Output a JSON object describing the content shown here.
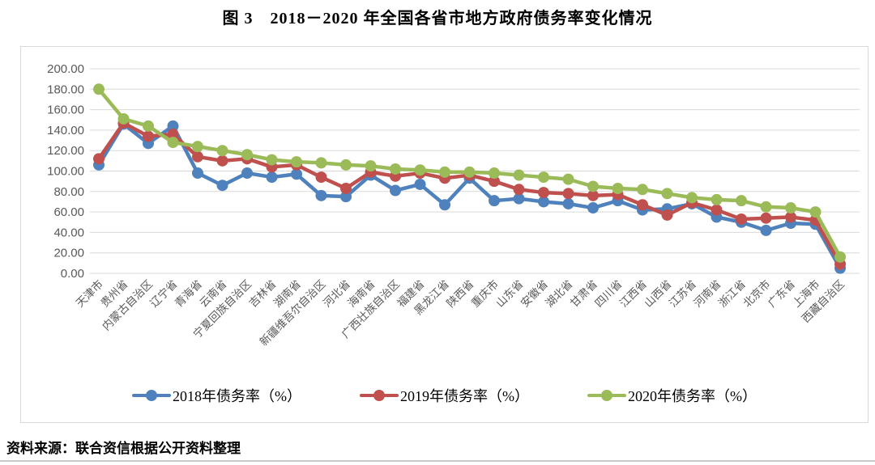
{
  "title": "图 3　2018－2020 年全国各省市地方政府债务率变化情况",
  "source_note": "资料来源：联合资信根据公开资料整理",
  "colors": {
    "gridline": "#d9d9d9",
    "axis_text": "#595959",
    "chart_border": "#d9d9d9"
  },
  "chart_data": {
    "type": "line",
    "title": "图 3　2018－2020 年全国各省市地方政府债务率变化情况",
    "xlabel": "",
    "ylabel": "",
    "ylim": [
      0,
      200
    ],
    "ytick_step": 20,
    "ytick_labels": [
      "0.00",
      "20.00",
      "40.00",
      "60.00",
      "80.00",
      "100.00",
      "120.00",
      "140.00",
      "160.00",
      "180.00",
      "200.00"
    ],
    "grid": "horizontal",
    "legend_position": "bottom",
    "categories": [
      "天津市",
      "贵州省",
      "内蒙古自治区",
      "辽宁省",
      "青海省",
      "云南省",
      "宁夏回族自治区",
      "吉林省",
      "湖南省",
      "新疆维吾尔自治区",
      "河北省",
      "海南省",
      "广西壮族自治区",
      "福建省",
      "黑龙江省",
      "陕西省",
      "重庆市",
      "山东省",
      "安徽省",
      "湖北省",
      "甘肃省",
      "四川省",
      "江西省",
      "山西省",
      "江苏省",
      "河南省",
      "浙江省",
      "北京市",
      "广东省",
      "上海市",
      "西藏自治区"
    ],
    "series": [
      {
        "name": "2018年债务率（%）",
        "color": "#4F81BD",
        "values": [
          106,
          146,
          127,
          144,
          98,
          86,
          98,
          94,
          97,
          76,
          75,
          96,
          81,
          87,
          67,
          93,
          71,
          73,
          70,
          68,
          64,
          71,
          62,
          63,
          68,
          55,
          50,
          42,
          49,
          48,
          5
        ]
      },
      {
        "name": "2019年债务率（%）",
        "color": "#C0504D",
        "values": [
          112,
          147,
          134,
          136,
          114,
          110,
          112,
          104,
          106,
          94,
          83,
          99,
          95,
          98,
          93,
          96,
          90,
          82,
          79,
          78,
          76,
          77,
          67,
          57,
          69,
          62,
          53,
          54,
          55,
          52,
          9
        ]
      },
      {
        "name": "2020年债务率（%）",
        "color": "#9BBB59",
        "values": [
          180,
          151,
          144,
          128,
          124,
          120,
          116,
          111,
          109,
          108,
          106,
          105,
          102,
          101,
          99,
          99,
          98,
          96,
          94,
          92,
          85,
          83,
          82,
          78,
          74,
          72,
          71,
          65,
          64,
          60,
          16
        ]
      }
    ]
  }
}
